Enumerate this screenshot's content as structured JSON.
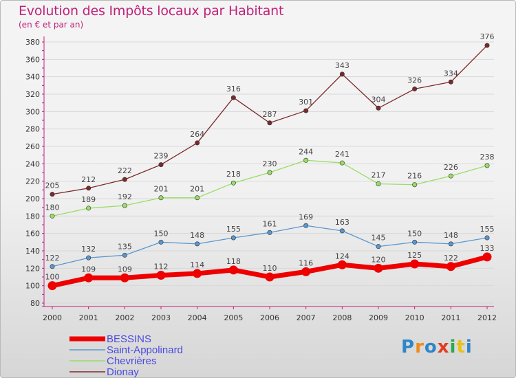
{
  "title": "Evolution des Impôts locaux par Habitant",
  "subtitle": "(en € et par an)",
  "brand": {
    "text": "Proxiti",
    "colors": [
      "#2e86c9",
      "#f08a1c",
      "#2e86c9",
      "#e23b1f",
      "#2fa84f",
      "#e8c21a",
      "#2e86c9"
    ]
  },
  "colors": {
    "title": "#c0207a",
    "axis": "#c0207a",
    "grid": "#d8d8d8",
    "legend_text": "#4a4ae0"
  },
  "chart_data": {
    "type": "line",
    "x": [
      "2000",
      "2001",
      "2002",
      "2003",
      "2004",
      "2005",
      "2006",
      "2007",
      "2008",
      "2009",
      "2010",
      "2011",
      "2012"
    ],
    "ylim": [
      80,
      380
    ],
    "yticks": [
      80,
      100,
      120,
      140,
      160,
      180,
      200,
      220,
      240,
      260,
      280,
      300,
      320,
      340,
      360,
      380
    ],
    "grid": true,
    "legend_position": "bottom-left",
    "series": [
      {
        "name": "BESSINS",
        "color": "#ee0000",
        "values": [
          100,
          109,
          109,
          112,
          114,
          118,
          110,
          116,
          124,
          120,
          125,
          122,
          133
        ]
      },
      {
        "name": "Saint-Appolinard",
        "color": "#5a97cf",
        "values": [
          122,
          132,
          135,
          150,
          148,
          155,
          161,
          169,
          163,
          145,
          150,
          148,
          155
        ]
      },
      {
        "name": "Chevrières",
        "color": "#99dd66",
        "values": [
          180,
          189,
          192,
          201,
          201,
          218,
          230,
          244,
          241,
          217,
          216,
          226,
          238
        ]
      },
      {
        "name": "Dionay",
        "color": "#7a2a2a",
        "values": [
          205,
          212,
          222,
          239,
          264,
          316,
          287,
          301,
          343,
          304,
          326,
          334,
          376
        ]
      }
    ]
  }
}
